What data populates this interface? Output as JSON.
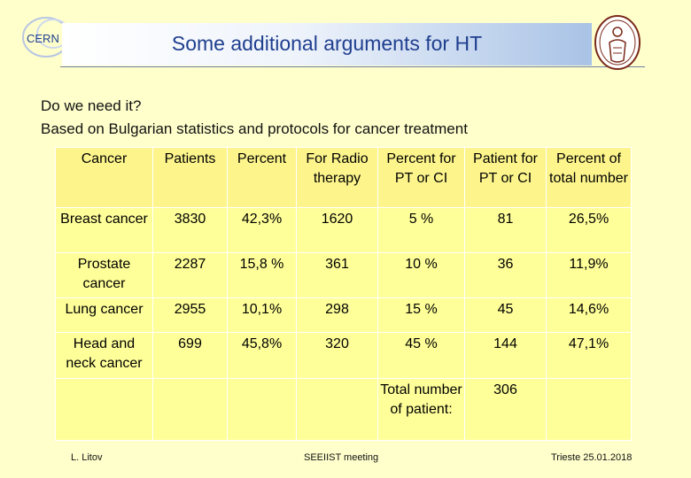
{
  "header": {
    "logo_text": "CERN",
    "title": "Some additional arguments for HT"
  },
  "intro": {
    "line1": "Do we need it?",
    "line2": "Based on Bulgarian statistics and protocols for cancer treatment"
  },
  "table": {
    "headers": [
      "Cancer",
      "Patients",
      "Percent",
      "For Radio therapy",
      "Percent for PT or CI",
      "Patient for PT or CI",
      "Percent of total number"
    ],
    "rows": [
      [
        "Breast cancer",
        "3830",
        "42,3%",
        "1620",
        "5 %",
        "81",
        "26,5%"
      ],
      [
        "Prostate cancer",
        "2287",
        "15,8 %",
        "361",
        "10 %",
        "36",
        "11,9%"
      ],
      [
        "Lung cancer",
        "2955",
        "10,1%",
        "298",
        "15 %",
        "45",
        "14,6%"
      ],
      [
        "Head and neck cancer",
        "699",
        "45,8%",
        "320",
        "45 %",
        "144",
        "47,1%"
      ],
      [
        "",
        "",
        "",
        "",
        "Total number of patient:",
        "306",
        ""
      ]
    ]
  },
  "footer": {
    "author": "L. Litov",
    "meeting": "SEEIIST meeting",
    "place_date": "Trieste 25.01.2018"
  }
}
